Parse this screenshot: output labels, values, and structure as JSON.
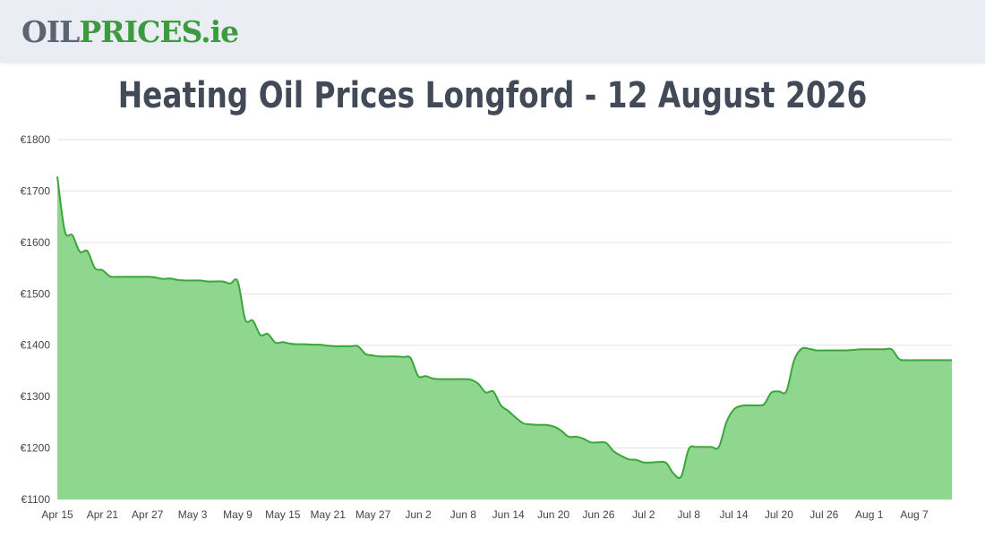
{
  "header": {
    "logo_part1": "OIL",
    "logo_part2": "PRICES.ie"
  },
  "page": {
    "title": "Heating Oil Prices Longford - 12 August 2026"
  },
  "colors": {
    "logo_gray": "#5b6472",
    "logo_green": "#3c9a3f",
    "area_fill": "#8fd68f",
    "line": "#3aa63a",
    "grid": "#e3e3e3"
  },
  "chart_data": {
    "type": "area",
    "title": "",
    "xlabel": "",
    "ylabel": "",
    "ylim": [
      1100,
      1800
    ],
    "yticks": [
      "€1800",
      "€1700",
      "€1600",
      "€1500",
      "€1400",
      "€1300",
      "€1200",
      "€1100"
    ],
    "ytick_values": [
      1800,
      1700,
      1600,
      1500,
      1400,
      1300,
      1200,
      1100
    ],
    "xticks": [
      "Apr 15",
      "Apr 21",
      "Apr 27",
      "May 3",
      "May 9",
      "May 15",
      "May 21",
      "May 27",
      "Jun 2",
      "Jun 8",
      "Jun 14",
      "Jun 20",
      "Jun 26",
      "Jul 2",
      "Jul 8",
      "Jul 14",
      "Jul 20",
      "Jul 26",
      "Aug 1",
      "Aug 7"
    ],
    "grid": true,
    "legend": "none",
    "series": [
      {
        "x": [
          "2026-04-15",
          "2026-04-16",
          "2026-04-17",
          "2026-04-18",
          "2026-04-19",
          "2026-04-20",
          "2026-04-21",
          "2026-04-22",
          "2026-04-23",
          "2026-04-24",
          "2026-04-25",
          "2026-04-26",
          "2026-04-27",
          "2026-04-28",
          "2026-04-29",
          "2026-04-30",
          "2026-05-01",
          "2026-05-02",
          "2026-05-03",
          "2026-05-04",
          "2026-05-05",
          "2026-05-06",
          "2026-05-07",
          "2026-05-08",
          "2026-05-09",
          "2026-05-10",
          "2026-05-11",
          "2026-05-12",
          "2026-05-13",
          "2026-05-14",
          "2026-05-15",
          "2026-05-16",
          "2026-05-17",
          "2026-05-18",
          "2026-05-19",
          "2026-05-20",
          "2026-05-21",
          "2026-05-22",
          "2026-05-23",
          "2026-05-24",
          "2026-05-25",
          "2026-05-26",
          "2026-05-27",
          "2026-05-28",
          "2026-05-29",
          "2026-05-30",
          "2026-05-31",
          "2026-06-01",
          "2026-06-02",
          "2026-06-03",
          "2026-06-04",
          "2026-06-05",
          "2026-06-06",
          "2026-06-07",
          "2026-06-08",
          "2026-06-09",
          "2026-06-10",
          "2026-06-11",
          "2026-06-12",
          "2026-06-13",
          "2026-06-14",
          "2026-06-15",
          "2026-06-16",
          "2026-06-17",
          "2026-06-18",
          "2026-06-19",
          "2026-06-20",
          "2026-06-21",
          "2026-06-22",
          "2026-06-23",
          "2026-06-24",
          "2026-06-25",
          "2026-06-26",
          "2026-06-27",
          "2026-06-28",
          "2026-06-29",
          "2026-06-30",
          "2026-07-01",
          "2026-07-02",
          "2026-07-03",
          "2026-07-04",
          "2026-07-05",
          "2026-07-06",
          "2026-07-07",
          "2026-07-08",
          "2026-07-09",
          "2026-07-10",
          "2026-07-11",
          "2026-07-12",
          "2026-07-13",
          "2026-07-14",
          "2026-07-15",
          "2026-07-16",
          "2026-07-17",
          "2026-07-18",
          "2026-07-19",
          "2026-07-20",
          "2026-07-21",
          "2026-07-22",
          "2026-07-23",
          "2026-07-24",
          "2026-07-25",
          "2026-07-26",
          "2026-07-27",
          "2026-07-28",
          "2026-07-29",
          "2026-07-30",
          "2026-07-31",
          "2026-08-01",
          "2026-08-02",
          "2026-08-03",
          "2026-08-04",
          "2026-08-05",
          "2026-08-06",
          "2026-08-07",
          "2026-08-08",
          "2026-08-09",
          "2026-08-10",
          "2026-08-11",
          "2026-08-12"
        ],
        "values": [
          1728,
          1622,
          1614,
          1582,
          1583,
          1550,
          1546,
          1534,
          1533,
          1533,
          1533,
          1533,
          1533,
          1532,
          1529,
          1530,
          1527,
          1526,
          1526,
          1526,
          1524,
          1524,
          1524,
          1520,
          1524,
          1450,
          1448,
          1420,
          1422,
          1405,
          1406,
          1403,
          1402,
          1402,
          1401,
          1401,
          1399,
          1398,
          1398,
          1398,
          1398,
          1383,
          1380,
          1378,
          1378,
          1378,
          1377,
          1375,
          1340,
          1340,
          1335,
          1334,
          1334,
          1334,
          1334,
          1333,
          1325,
          1308,
          1310,
          1283,
          1272,
          1259,
          1248,
          1246,
          1245,
          1245,
          1242,
          1234,
          1222,
          1222,
          1218,
          1211,
          1211,
          1210,
          1194,
          1185,
          1178,
          1177,
          1172,
          1172,
          1173,
          1171,
          1150,
          1145,
          1198,
          1202,
          1202,
          1202,
          1202,
          1250,
          1275,
          1282,
          1283,
          1283,
          1285,
          1308,
          1310,
          1311,
          1370,
          1393,
          1393,
          1390,
          1390,
          1390,
          1390,
          1390,
          1391,
          1392,
          1392,
          1392,
          1392,
          1392,
          1373,
          1371,
          1371,
          1371,
          1371,
          1371,
          1371,
          1371
        ]
      }
    ]
  }
}
